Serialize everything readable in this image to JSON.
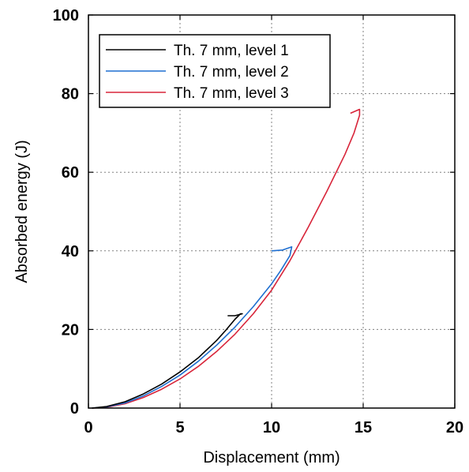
{
  "chart_data": {
    "type": "line",
    "xlabel": "Displacement (mm)",
    "ylabel": "Absorbed energy (J)",
    "xlim": [
      0,
      20
    ],
    "ylim": [
      0,
      100
    ],
    "xticks": [
      "0",
      "5",
      "10",
      "15",
      "20"
    ],
    "yticks": [
      "0",
      "20",
      "40",
      "60",
      "80",
      "100"
    ],
    "grid": true,
    "legend_position": "top-left",
    "series": [
      {
        "name": "Th. 7 mm, level 1",
        "color": "#000000",
        "x": [
          0.2,
          1.0,
          2.0,
          3.0,
          4.0,
          5.0,
          6.0,
          7.0,
          7.5,
          8.0,
          8.3,
          8.4,
          8.0,
          7.6
        ],
        "y": [
          0,
          0.4,
          1.6,
          3.6,
          6.1,
          9.2,
          12.8,
          17.2,
          19.8,
          22.6,
          24.0,
          24.0,
          23.5,
          23.5
        ]
      },
      {
        "name": "Th. 7 mm, level 2",
        "color": "#1f6fd0",
        "x": [
          0.2,
          1.0,
          2.0,
          3.0,
          4.0,
          5.0,
          6.0,
          7.0,
          8.0,
          9.0,
          10.0,
          10.5,
          11.0,
          11.1,
          10.6,
          10.0
        ],
        "y": [
          0,
          0.3,
          1.3,
          3.1,
          5.5,
          8.4,
          11.9,
          16.0,
          20.6,
          25.8,
          31.6,
          35.0,
          38.8,
          41.0,
          40.2,
          40.0
        ]
      },
      {
        "name": "Th. 7 mm, level 3",
        "color": "#d8253a",
        "x": [
          0.2,
          1.0,
          2.0,
          3.0,
          4.0,
          5.0,
          6.0,
          7.0,
          8.0,
          9.0,
          10.0,
          11.0,
          12.0,
          13.0,
          14.0,
          14.5,
          14.8,
          14.8,
          14.3
        ],
        "y": [
          0,
          0.2,
          1.1,
          2.7,
          4.8,
          7.4,
          10.6,
          14.4,
          18.8,
          24.0,
          30.0,
          37.5,
          46.0,
          55.0,
          64.5,
          70.0,
          74.5,
          76.0,
          75.0
        ]
      }
    ]
  }
}
